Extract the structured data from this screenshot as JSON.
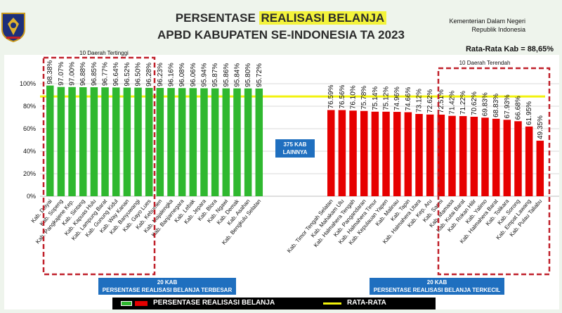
{
  "header": {
    "title_prefix": "PERSENTASE ",
    "title_highlight": "REALISASI BELANJA",
    "subtitle": "APBD KABUPATEN SE-INDONESIA TA 2023",
    "ministry_line1": "Kementerian Dalam Negeri",
    "ministry_line2": "Republik Indonesia",
    "average_label": "Rata-Rata Kab = 88,65%"
  },
  "colors": {
    "highest": "#2fb82f",
    "lowest": "#e60000",
    "average_line": "#f2f20c",
    "box_blue": "#1f6fbf",
    "dashed_red": "#c0202a"
  },
  "annotations": {
    "top10": "10 Daerah Tertinggi",
    "bottom10": "10 Daerah Terendah",
    "others_line1": "375 KAB",
    "others_line2": "LAINNYA"
  },
  "boxes": {
    "highest_line1": "20 KAB",
    "highest_line2": "PERSENTASE REALISASI BELANJA TERBESAR",
    "lowest_line1": "20 KAB",
    "lowest_line2": "PERSENTASE REALISASI BELANJA TERKECIL"
  },
  "legend": {
    "series_label": "PERSENTASE REALISASI BELANJA",
    "average_label": "RATA-RATA"
  },
  "chart_data": {
    "type": "bar",
    "ylim": [
      0,
      100
    ],
    "yticks": [
      "0%",
      "20%",
      "40%",
      "60%",
      "80%",
      "100%"
    ],
    "average": 88.65,
    "grid": true,
    "highest": {
      "categories": [
        "Kab. Deiyai",
        "Kab. Sopeng",
        "Kab. Pangkajene Kep.",
        "Kab. Sintang",
        "Kab. Kapuas Hulu",
        "Kab. Lampung Barat",
        "Kab. Gunung Kidul",
        "Kab. Way Kanan",
        "Kab. Banyuwangi",
        "Kab. Gayo Lues",
        "Kab. Kebumen",
        "Kab. Majalengka",
        "Kab. Banjarnegara",
        "Kab. Lebak",
        "Kab. Jepara",
        "Kab. Blora",
        "Kab. Ngawi",
        "Kab. Demak",
        "Kab. Asahan",
        "Kab. Bengkulu Selatan"
      ],
      "values": [
        98.38,
        97.07,
        97.0,
        96.88,
        96.85,
        96.77,
        96.64,
        96.52,
        96.5,
        96.28,
        96.23,
        96.16,
        96.08,
        96.06,
        95.94,
        95.87,
        95.86,
        95.84,
        95.8,
        95.72
      ],
      "labels": [
        "98.38%",
        "97.07%",
        "97.00%",
        "96.88%",
        "96.85%",
        "96.77%",
        "96.64%",
        "96.52%",
        "96.50%",
        "96.28%",
        "96.23%",
        "96.16%",
        "96.08%",
        "96.06%",
        "95.94%",
        "95.87%",
        "95.86%",
        "95.84%",
        "95.80%",
        "95.72%"
      ]
    },
    "lowest": {
      "categories": [
        "Kab. Timor Tengah Selatan",
        "Kab. Mahakam Ulu",
        "Kab. Halmahera Tengah",
        "Kab. Pangandaran",
        "Kab. Halmahera Timur",
        "Kab. Kepulauan Yapen",
        "Kab. Malinau",
        "Kab. Tapin",
        "Kab. Halmahera Utara",
        "Kab. Kep. Aru",
        "Kab. Sarmi",
        "Kab. Mamasa",
        "Kab. Kutai Barat",
        "Kab. Rokan Hilir",
        "Kab. Yalimo",
        "Kab. Halmahera Barat",
        "Kab. Tolikara",
        "Kab. Sorong",
        "Kab. Empat Lawang",
        "Kab. Pulau Taliabu"
      ],
      "values": [
        76.59,
        76.56,
        76.1,
        75.78,
        75.14,
        75.12,
        74.96,
        74.66,
        73.12,
        72.62,
        72.51,
        71.42,
        71.22,
        70.62,
        69.83,
        68.83,
        67.93,
        66.68,
        61.95,
        49.35
      ],
      "labels": [
        "76.59%",
        "76.56%",
        "76.10%",
        "75.78%",
        "75.14%",
        "75.12%",
        "74.96%",
        "74.66%",
        "73.12%",
        "72.62%",
        "72.51%",
        "71.42%",
        "71.22%",
        "70.62%",
        "69.83%",
        "68.83%",
        "67.93%",
        "66.68%",
        "61.95%",
        "49.35%"
      ]
    }
  }
}
